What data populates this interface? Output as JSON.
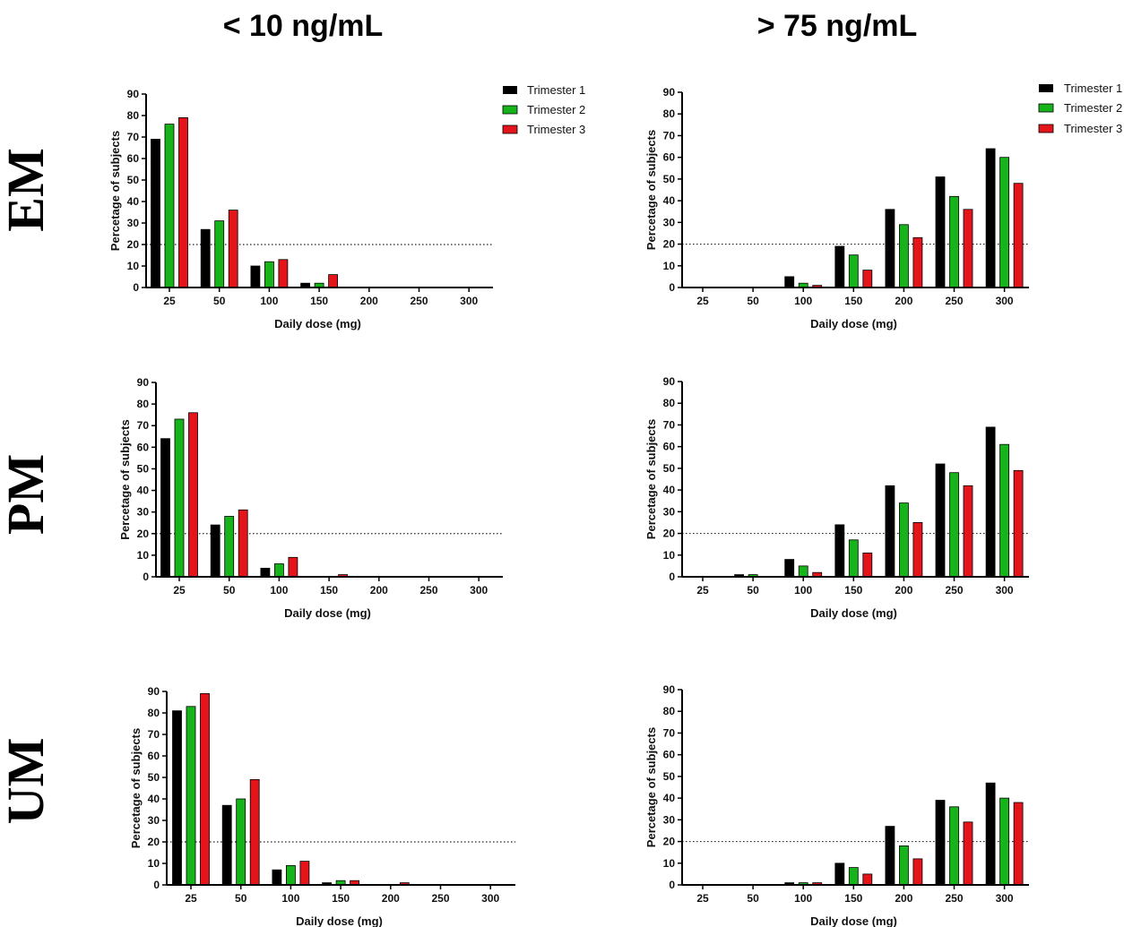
{
  "column_titles": [
    "< 10 ng/mL",
    "> 75 ng/mL"
  ],
  "row_labels": [
    "EM",
    "PM",
    "UM"
  ],
  "legend": {
    "entries": [
      "Trimester 1",
      "Trimester 2",
      "Trimester 3"
    ],
    "colors": [
      "#000000",
      "#17b31a",
      "#e3151b"
    ]
  },
  "threshold_line": 20,
  "chart_data": [
    {
      "id": "em-low",
      "type": "bar",
      "xlabel": "Daily dose  (mg)",
      "ylabel": "Percetage of subjects",
      "ylim": [
        0,
        90
      ],
      "yticks": [
        0,
        10,
        20,
        30,
        40,
        50,
        60,
        70,
        80,
        90
      ],
      "categories": [
        "25",
        "50",
        "100",
        "150",
        "200",
        "250",
        "300"
      ],
      "series": [
        {
          "name": "Trimester 1",
          "values": [
            69,
            27,
            10,
            2,
            0,
            0,
            0
          ]
        },
        {
          "name": "Trimester 2",
          "values": [
            76,
            31,
            12,
            2,
            0,
            0,
            0
          ]
        },
        {
          "name": "Trimester 3",
          "values": [
            79,
            36,
            13,
            6,
            0,
            0,
            0
          ]
        }
      ]
    },
    {
      "id": "em-high",
      "type": "bar",
      "xlabel": "Daily dose  (mg)",
      "ylabel": "Percetage of subjects",
      "ylim": [
        0,
        90
      ],
      "yticks": [
        0,
        10,
        20,
        30,
        40,
        50,
        60,
        70,
        80,
        90
      ],
      "categories": [
        "25",
        "50",
        "100",
        "150",
        "200",
        "250",
        "300"
      ],
      "series": [
        {
          "name": "Trimester 1",
          "values": [
            0,
            0,
            5,
            19,
            36,
            51,
            64
          ]
        },
        {
          "name": "Trimester 2",
          "values": [
            0,
            0,
            2,
            15,
            29,
            42,
            60
          ]
        },
        {
          "name": "Trimester 3",
          "values": [
            0,
            0,
            1,
            8,
            23,
            36,
            48
          ]
        }
      ]
    },
    {
      "id": "pm-low",
      "type": "bar",
      "xlabel": "Daily dose  (mg)",
      "ylabel": "Percetage of subjects",
      "ylim": [
        0,
        90
      ],
      "yticks": [
        0,
        10,
        20,
        30,
        40,
        50,
        60,
        70,
        80,
        90
      ],
      "categories": [
        "25",
        "50",
        "100",
        "150",
        "200",
        "250",
        "300"
      ],
      "series": [
        {
          "name": "Trimester 1",
          "values": [
            64,
            24,
            4,
            0,
            0,
            0,
            0
          ]
        },
        {
          "name": "Trimester 2",
          "values": [
            73,
            28,
            6,
            0,
            0,
            0,
            0
          ]
        },
        {
          "name": "Trimester 3",
          "values": [
            76,
            31,
            9,
            1,
            0,
            0,
            0
          ]
        }
      ]
    },
    {
      "id": "pm-high",
      "type": "bar",
      "xlabel": "Daily dose  (mg)",
      "ylabel": "Percetage of subjects",
      "ylim": [
        0,
        90
      ],
      "yticks": [
        0,
        10,
        20,
        30,
        40,
        50,
        60,
        70,
        80,
        90
      ],
      "categories": [
        "25",
        "50",
        "100",
        "150",
        "200",
        "250",
        "300"
      ],
      "series": [
        {
          "name": "Trimester 1",
          "values": [
            0,
            1,
            8,
            24,
            42,
            52,
            69
          ]
        },
        {
          "name": "Trimester 2",
          "values": [
            0,
            1,
            5,
            17,
            34,
            48,
            61
          ]
        },
        {
          "name": "Trimester 3",
          "values": [
            0,
            0,
            2,
            11,
            25,
            42,
            49
          ]
        }
      ]
    },
    {
      "id": "um-low",
      "type": "bar",
      "xlabel": "Daily dose  (mg)",
      "ylabel": "Percetage of subjects",
      "ylim": [
        0,
        90
      ],
      "yticks": [
        0,
        10,
        20,
        30,
        40,
        50,
        60,
        70,
        80,
        90
      ],
      "categories": [
        "25",
        "50",
        "100",
        "150",
        "200",
        "250",
        "300"
      ],
      "series": [
        {
          "name": "Trimester 1",
          "values": [
            81,
            37,
            7,
            1,
            0,
            0,
            0
          ]
        },
        {
          "name": "Trimester 2",
          "values": [
            83,
            40,
            9,
            2,
            0,
            0,
            0
          ]
        },
        {
          "name": "Trimester 3",
          "values": [
            89,
            49,
            11,
            2,
            1,
            0,
            0
          ]
        }
      ]
    },
    {
      "id": "um-high",
      "type": "bar",
      "xlabel": "Daily dose  (mg)",
      "ylabel": "Percetage of subjects",
      "ylim": [
        0,
        90
      ],
      "yticks": [
        0,
        10,
        20,
        30,
        40,
        50,
        60,
        70,
        80,
        90
      ],
      "categories": [
        "25",
        "50",
        "100",
        "150",
        "200",
        "250",
        "300"
      ],
      "series": [
        {
          "name": "Trimester 1",
          "values": [
            0,
            0,
            1,
            10,
            27,
            39,
            47
          ]
        },
        {
          "name": "Trimester 2",
          "values": [
            0,
            0,
            1,
            8,
            18,
            36,
            40
          ]
        },
        {
          "name": "Trimester 3",
          "values": [
            0,
            0,
            1,
            5,
            12,
            29,
            38
          ]
        }
      ]
    }
  ]
}
